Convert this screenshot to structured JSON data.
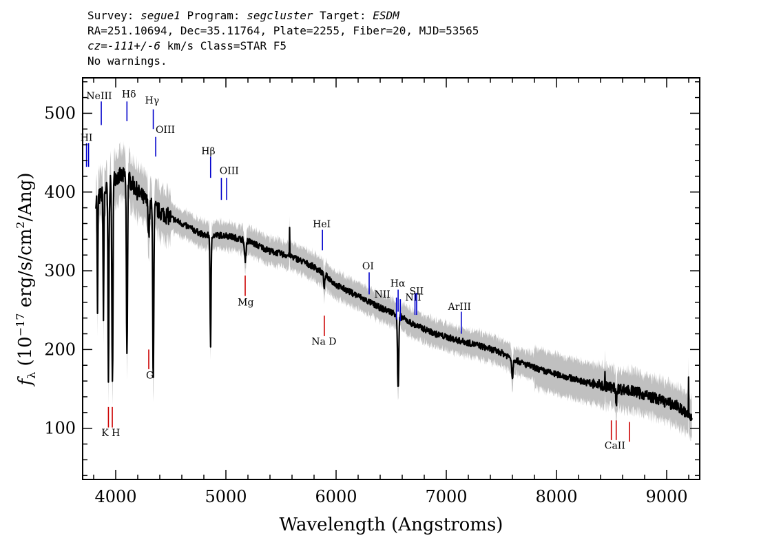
{
  "header": {
    "line1_prefix": "Survey: ",
    "survey": "segue1",
    "line1_mid": " Program: ",
    "program": "segcluster",
    "line1_mid2": " Target: ",
    "target": "ESDM",
    "line2": "RA=251.10694, Dec=35.11764, Plate=2255, Fiber=20, MJD=53565",
    "line3_cz": "cz=-111+/-6",
    "line3_rest": " km/s Class=STAR F5",
    "line4": "No warnings."
  },
  "chart_data": {
    "type": "line",
    "title": "",
    "xlabel": "Wavelength (Angstroms)",
    "ylabel_parts": {
      "f": "f",
      "sub": "λ",
      "open": " (10",
      "exp1": "−17",
      "mid": " erg/s/cm",
      "exp2": "2",
      "close": "/Ang)"
    },
    "xlim": [
      3700,
      9300
    ],
    "ylim": [
      35,
      545
    ],
    "xticks": [
      4000,
      5000,
      6000,
      7000,
      8000,
      9000
    ],
    "yticks": [
      100,
      200,
      300,
      400,
      500
    ],
    "x_minor_step": 200,
    "y_minor_step": 20,
    "colors": {
      "spectrum": "#000000",
      "error": "#c0c0c0",
      "emission": "#0000cc",
      "absorption": "#cc0000"
    },
    "continuum_nodes": [
      [
        3820,
        390
      ],
      [
        3900,
        400
      ],
      [
        4000,
        420
      ],
      [
        4100,
        420
      ],
      [
        4200,
        400
      ],
      [
        4300,
        385
      ],
      [
        4400,
        375
      ],
      [
        4600,
        360
      ],
      [
        4800,
        345
      ],
      [
        5000,
        345
      ],
      [
        5200,
        338
      ],
      [
        5400,
        325
      ],
      [
        5600,
        318
      ],
      [
        5800,
        305
      ],
      [
        5900,
        295
      ],
      [
        6000,
        282
      ],
      [
        6200,
        268
      ],
      [
        6400,
        253
      ],
      [
        6550,
        245
      ],
      [
        6700,
        232
      ],
      [
        6900,
        220
      ],
      [
        7100,
        212
      ],
      [
        7300,
        205
      ],
      [
        7500,
        196
      ],
      [
        7700,
        182
      ],
      [
        7900,
        172
      ],
      [
        8100,
        165
      ],
      [
        8300,
        157
      ],
      [
        8500,
        152
      ],
      [
        8700,
        147
      ],
      [
        8900,
        138
      ],
      [
        9100,
        128
      ],
      [
        9230,
        112
      ]
    ],
    "absorption_features": [
      {
        "name": "H9",
        "center": 3835,
        "depth": 150,
        "width": 4
      },
      {
        "name": "H8",
        "center": 3889,
        "depth": 160,
        "width": 5
      },
      {
        "name": "K",
        "center": 3934,
        "depth": 250,
        "width": 6
      },
      {
        "name": "H",
        "center": 3970,
        "depth": 260,
        "width": 7
      },
      {
        "name": "Hd",
        "center": 4102,
        "depth": 230,
        "width": 7
      },
      {
        "name": "G",
        "center": 4300,
        "depth": 40,
        "width": 8
      },
      {
        "name": "Hg",
        "center": 4341,
        "depth": 215,
        "width": 7
      },
      {
        "name": "Hb",
        "center": 4861,
        "depth": 145,
        "width": 6
      },
      {
        "name": "Mg",
        "center": 5175,
        "depth": 25,
        "width": 10
      },
      {
        "name": "NaD",
        "center": 5893,
        "depth": 15,
        "width": 8
      },
      {
        "name": "Ha",
        "center": 6563,
        "depth": 95,
        "width": 8
      },
      {
        "name": "A-band",
        "center": 7600,
        "depth": 25,
        "width": 8
      },
      {
        "name": "CaII",
        "center": 8542,
        "depth": 20,
        "width": 6
      }
    ],
    "spikes": [
      {
        "x": 5577,
        "y": 355
      },
      {
        "x": 8440,
        "y": 172
      },
      {
        "x": 9200,
        "y": 165
      }
    ],
    "emission_lines": [
      {
        "label": "HI",
        "x": 3735,
        "y1": 432,
        "y2": 462,
        "ly": 465,
        "lx": 3735,
        "double": 3
      },
      {
        "label": "NeIII",
        "x": 3869,
        "y1": 485,
        "y2": 515,
        "ly": 518,
        "lx": 3850
      },
      {
        "label": "Hδ",
        "x": 4102,
        "y1": 490,
        "y2": 515,
        "ly": 520,
        "lx": 4120
      },
      {
        "label": "Hγ",
        "x": 4341,
        "y1": 480,
        "y2": 505,
        "ly": 512,
        "lx": 4330
      },
      {
        "label": "OIII",
        "x": 4363,
        "y1": 445,
        "y2": 470,
        "ly": 475,
        "lx": 4450
      },
      {
        "label": "Hβ",
        "x": 4861,
        "y1": 418,
        "y2": 445,
        "ly": 448,
        "lx": 4840
      },
      {
        "label": "OIII",
        "x": 4959,
        "y1": 390,
        "y2": 418,
        "ly": 423,
        "lx": 5030
      },
      {
        "label": "OIII",
        "x": 5007,
        "y1": 390,
        "y2": 418
      },
      {
        "label": "HeI",
        "x": 5876,
        "y1": 326,
        "y2": 352,
        "ly": 355,
        "lx": 5870
      },
      {
        "label": "OI",
        "x": 6300,
        "y1": 270,
        "y2": 298,
        "ly": 302,
        "lx": 6290
      },
      {
        "label": "NII",
        "x": 6548,
        "y1": 238,
        "y2": 266,
        "ly": 266,
        "lx": 6420
      },
      {
        "label": "Hα",
        "x": 6563,
        "y1": 248,
        "y2": 276,
        "ly": 280,
        "lx": 6560
      },
      {
        "label": "NII",
        "x": 6583,
        "y1": 236,
        "y2": 264,
        "ly": 262,
        "lx": 6700
      },
      {
        "label": "SII",
        "x": 6716,
        "y1": 244,
        "y2": 272,
        "ly": 270,
        "lx": 6730
      },
      {
        "label": "SII",
        "x": 6731,
        "y1": 244,
        "y2": 272
      },
      {
        "label": "ArIII",
        "x": 7136,
        "y1": 220,
        "y2": 248,
        "ly": 250,
        "lx": 7120
      }
    ],
    "absorption_lines": [
      {
        "label": "K H",
        "x": 3934,
        "y1": 101,
        "y2": 127,
        "ly": 90,
        "lx": 3955
      },
      {
        "label": "",
        "x": 3969,
        "y1": 101,
        "y2": 127
      },
      {
        "label": "G",
        "x": 4300,
        "y1": 175,
        "y2": 200,
        "ly": 163,
        "lx": 4310
      },
      {
        "label": "Mg",
        "x": 5175,
        "y1": 268,
        "y2": 294,
        "ly": 256,
        "lx": 5180
      },
      {
        "label": "Na D",
        "x": 5893,
        "y1": 217,
        "y2": 243,
        "ly": 206,
        "lx": 5890
      },
      {
        "label": "CaII",
        "x": 8498,
        "y1": 85,
        "y2": 110,
        "ly": 74,
        "lx": 8530
      },
      {
        "label": "",
        "x": 8542,
        "y1": 85,
        "y2": 110
      },
      {
        "label": "",
        "x": 8662,
        "y1": 83,
        "y2": 108
      }
    ]
  }
}
